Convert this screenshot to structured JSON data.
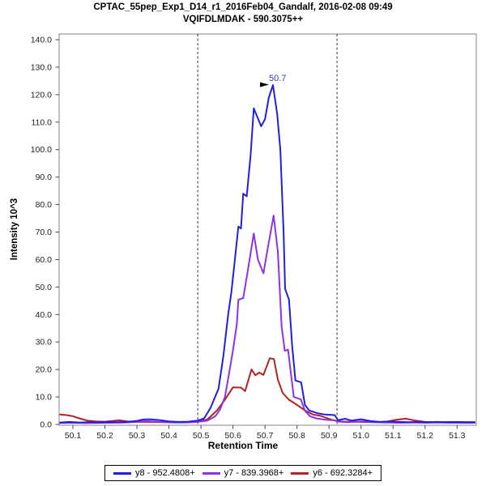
{
  "header": {
    "title_line1": "CPTAC_55pep_Exp1_D14_r1_2016Feb04_Gandalf, 2016-02-08 09:49",
    "title_line2": "VQIFDLMDAK - 590.3075++"
  },
  "chart_data": {
    "type": "line",
    "title": "CPTAC_55pep_Exp1_D14_r1_2016Feb04_Gandalf, 2016-02-08 09:49",
    "subtitle": "VQIFDLMDAK - 590.3075++",
    "xlabel": "Retention Time",
    "ylabel": "Intensity 10^3",
    "xlim": [
      50.057,
      51.36
    ],
    "ylim": [
      0,
      142
    ],
    "grid": false,
    "legend_position": "bottom-center",
    "xtick_labels": [
      "50.1",
      "50.2",
      "50.3",
      "50.4",
      "50.5",
      "50.6",
      "50.7",
      "50.8",
      "50.9",
      "51.0",
      "51.1",
      "51.2",
      "51.3"
    ],
    "ytick_labels": [
      "0.0",
      "10.0",
      "20.0",
      "30.0",
      "40.0",
      "50.0",
      "60.0",
      "70.0",
      "80.0",
      "90.0",
      "100.0",
      "110.0",
      "120.0",
      "130.0",
      "140.0"
    ],
    "integration_boundaries": [
      50.49,
      50.925
    ],
    "boundary_color": "#333333",
    "annotation": {
      "text": "50.7",
      "rt": 50.725,
      "intensity": 123.5,
      "color": "#3535d0",
      "arrow_color": "#000000"
    },
    "series": [
      {
        "name": "y8 - 952.4808+",
        "color": "#1f1fe0",
        "points": [
          [
            50.06,
            0.7
          ],
          [
            50.09,
            0.9
          ],
          [
            50.12,
            0.7
          ],
          [
            50.15,
            0.8
          ],
          [
            50.18,
            0.7
          ],
          [
            50.21,
            0.9
          ],
          [
            50.24,
            0.8
          ],
          [
            50.27,
            0.9
          ],
          [
            50.3,
            1.3
          ],
          [
            50.32,
            1.8
          ],
          [
            50.34,
            1.9
          ],
          [
            50.37,
            1.6
          ],
          [
            50.4,
            1.1
          ],
          [
            50.43,
            0.9
          ],
          [
            50.46,
            1.0
          ],
          [
            50.49,
            1.4
          ],
          [
            50.51,
            2.2
          ],
          [
            50.53,
            6.0
          ],
          [
            50.555,
            13.0
          ],
          [
            50.57,
            25.0
          ],
          [
            50.585,
            40.0
          ],
          [
            50.595,
            48.0
          ],
          [
            50.606,
            60.0
          ],
          [
            50.617,
            72.0
          ],
          [
            50.625,
            71.3
          ],
          [
            50.632,
            84.0
          ],
          [
            50.643,
            83.0
          ],
          [
            50.655,
            98.0
          ],
          [
            50.665,
            115.0
          ],
          [
            50.688,
            108.5
          ],
          [
            50.7,
            111.0
          ],
          [
            50.712,
            119.0
          ],
          [
            50.725,
            123.5
          ],
          [
            50.738,
            113.0
          ],
          [
            50.748,
            100.0
          ],
          [
            50.758,
            70.0
          ],
          [
            50.763,
            49.3
          ],
          [
            50.775,
            45.4
          ],
          [
            50.785,
            28.6
          ],
          [
            50.795,
            16.0
          ],
          [
            50.813,
            15.3
          ],
          [
            50.825,
            7.1
          ],
          [
            50.838,
            5.1
          ],
          [
            50.863,
            4.1
          ],
          [
            50.888,
            3.6
          ],
          [
            50.918,
            3.4
          ],
          [
            50.928,
            1.5
          ],
          [
            50.95,
            2.1
          ],
          [
            50.97,
            1.4
          ],
          [
            51.0,
            1.9
          ],
          [
            51.03,
            1.2
          ],
          [
            51.06,
            0.9
          ],
          [
            51.09,
            1.1
          ],
          [
            51.12,
            0.9
          ],
          [
            51.15,
            0.8
          ],
          [
            51.18,
            0.9
          ],
          [
            51.21,
            0.8
          ],
          [
            51.24,
            0.9
          ],
          [
            51.27,
            0.8
          ],
          [
            51.3,
            0.9
          ],
          [
            51.33,
            0.8
          ],
          [
            51.355,
            0.8
          ]
        ]
      },
      {
        "name": "y7 - 839.3968+",
        "color": "#9032e0",
        "points": [
          [
            50.06,
            0.5
          ],
          [
            50.1,
            0.6
          ],
          [
            50.14,
            0.5
          ],
          [
            50.18,
            0.6
          ],
          [
            50.22,
            0.6
          ],
          [
            50.26,
            0.7
          ],
          [
            50.3,
            0.9
          ],
          [
            50.33,
            1.2
          ],
          [
            50.37,
            0.9
          ],
          [
            50.41,
            0.7
          ],
          [
            50.45,
            0.7
          ],
          [
            50.49,
            0.9
          ],
          [
            50.52,
            1.4
          ],
          [
            50.545,
            3.0
          ],
          [
            50.56,
            5.5
          ],
          [
            50.575,
            10.0
          ],
          [
            50.587,
            18.0
          ],
          [
            50.6,
            27.0
          ],
          [
            50.612,
            36.5
          ],
          [
            50.617,
            45.4
          ],
          [
            50.632,
            46.0
          ],
          [
            50.645,
            55.0
          ],
          [
            50.665,
            69.5
          ],
          [
            50.678,
            60.0
          ],
          [
            50.695,
            55.0
          ],
          [
            50.71,
            65.0
          ],
          [
            50.727,
            76.0
          ],
          [
            50.74,
            63.0
          ],
          [
            50.752,
            35.6
          ],
          [
            50.762,
            26.8
          ],
          [
            50.772,
            27.2
          ],
          [
            50.79,
            10.0
          ],
          [
            50.812,
            9.1
          ],
          [
            50.825,
            5.0
          ],
          [
            50.84,
            3.0
          ],
          [
            50.86,
            2.2
          ],
          [
            50.89,
            1.7
          ],
          [
            50.918,
            1.5
          ],
          [
            50.93,
            1.0
          ],
          [
            50.96,
            0.8
          ],
          [
            51.0,
            1.1
          ],
          [
            51.04,
            0.8
          ],
          [
            51.08,
            0.7
          ],
          [
            51.12,
            0.6
          ],
          [
            51.16,
            0.7
          ],
          [
            51.2,
            0.6
          ],
          [
            51.24,
            0.7
          ],
          [
            51.28,
            0.6
          ],
          [
            51.32,
            0.6
          ],
          [
            51.355,
            0.6
          ]
        ]
      },
      {
        "name": "y6 - 692.3284+",
        "color": "#b22222",
        "points": [
          [
            50.06,
            3.6
          ],
          [
            50.08,
            3.4
          ],
          [
            50.1,
            3.0
          ],
          [
            50.12,
            2.2
          ],
          [
            50.145,
            1.4
          ],
          [
            50.17,
            1.1
          ],
          [
            50.2,
            1.0
          ],
          [
            50.225,
            1.3
          ],
          [
            50.245,
            1.5
          ],
          [
            50.27,
            1.1
          ],
          [
            50.3,
            0.9
          ],
          [
            50.34,
            0.9
          ],
          [
            50.38,
            0.8
          ],
          [
            50.42,
            0.8
          ],
          [
            50.46,
            0.9
          ],
          [
            50.49,
            1.0
          ],
          [
            50.52,
            1.8
          ],
          [
            50.55,
            5.1
          ],
          [
            50.575,
            9.0
          ],
          [
            50.6,
            13.5
          ],
          [
            50.625,
            13.4
          ],
          [
            50.638,
            12.1
          ],
          [
            50.658,
            20.0
          ],
          [
            50.67,
            17.9
          ],
          [
            50.682,
            18.9
          ],
          [
            50.695,
            18.0
          ],
          [
            50.715,
            24.1
          ],
          [
            50.728,
            23.8
          ],
          [
            50.74,
            16.4
          ],
          [
            50.755,
            11.5
          ],
          [
            50.775,
            9.0
          ],
          [
            50.8,
            7.1
          ],
          [
            50.825,
            5.1
          ],
          [
            50.85,
            3.6
          ],
          [
            50.875,
            3.1
          ],
          [
            50.9,
            2.0
          ],
          [
            50.928,
            1.1
          ],
          [
            50.96,
            1.0
          ],
          [
            51.0,
            0.9
          ],
          [
            51.04,
            0.8
          ],
          [
            51.08,
            1.0
          ],
          [
            51.11,
            1.7
          ],
          [
            51.14,
            2.1
          ],
          [
            51.17,
            1.4
          ],
          [
            51.2,
            0.9
          ],
          [
            51.24,
            0.8
          ],
          [
            51.28,
            0.9
          ],
          [
            51.32,
            0.8
          ],
          [
            51.355,
            0.8
          ]
        ]
      }
    ]
  }
}
